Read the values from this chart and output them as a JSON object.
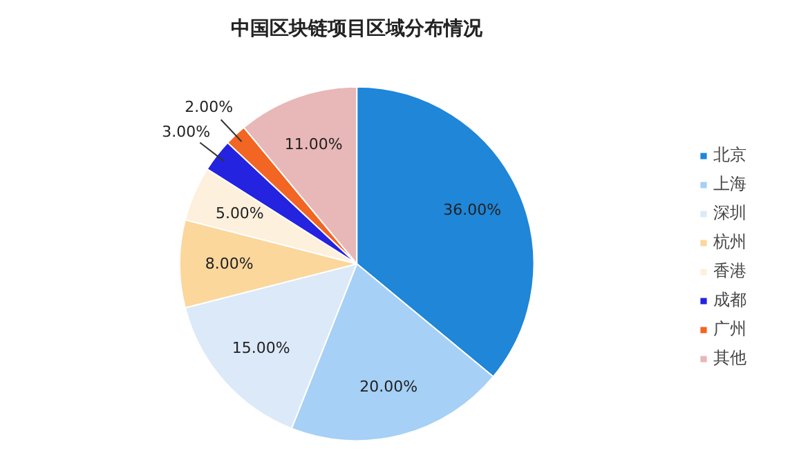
{
  "chart_data": {
    "type": "pie",
    "title": "中国区块链项目区域分布情况",
    "categories": [
      "北京",
      "上海",
      "深圳",
      "杭州",
      "香港",
      "成都",
      "广州",
      "其他"
    ],
    "values": [
      36,
      20,
      15,
      8,
      5,
      3,
      2,
      11
    ],
    "value_labels": [
      "36.00%",
      "20.00%",
      "15.00%",
      "8.00%",
      "5.00%",
      "3.00%",
      "2.00%",
      "11.00%"
    ],
    "colors": [
      "#1f86d8",
      "#a6d0f5",
      "#dbe9f8",
      "#fbd79c",
      "#fdf0dc",
      "#2323e0",
      "#f26522",
      "#e8b7b7"
    ],
    "legend": "right"
  }
}
